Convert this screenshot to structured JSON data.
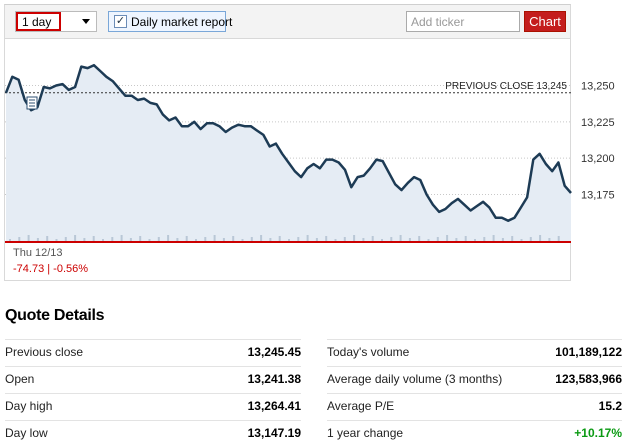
{
  "toolbar": {
    "range_value": "1 day",
    "report_label": "Daily market report",
    "report_checked": "✓",
    "ticker_placeholder": "Add ticker",
    "chart_button": "Chart"
  },
  "chart": {
    "previous_close_label": "PREVIOUS CLOSE 13,245",
    "y_ticks": [
      "13,250",
      "13,225",
      "13,200",
      "13,175"
    ],
    "date_label": "Thu 12/13",
    "change_label": "-74.73 | -0.56%",
    "colors": {
      "line": "#1d3b55",
      "fill": "#e5ecf4",
      "baseline": "#cc0000"
    }
  },
  "chart_data": {
    "type": "area",
    "title": "",
    "xlabel": "",
    "ylabel": "",
    "ylim": [
      13143,
      13282
    ],
    "y_ticks": [
      13250,
      13225,
      13200,
      13175
    ],
    "previous_close": 13245,
    "y": [
      13245,
      13256,
      13254,
      13240,
      13233,
      13235,
      13249,
      13248,
      13250,
      13251,
      13247,
      13249,
      13263,
      13262,
      13264,
      13260,
      13256,
      13253,
      13248,
      13243,
      13243,
      13240,
      13241,
      13238,
      13237,
      13230,
      13226,
      13228,
      13222,
      13222,
      13225,
      13220,
      13224,
      13224,
      13222,
      13218,
      13221,
      13223,
      13222,
      13222,
      13219,
      13216,
      13208,
      13210,
      13203,
      13197,
      13191,
      13187,
      13193,
      13196,
      13193,
      13199,
      13199,
      13197,
      13192,
      13180,
      13187,
      13188,
      13193,
      13199,
      13198,
      13190,
      13182,
      13178,
      13183,
      13187,
      13185,
      13175,
      13168,
      13163,
      13165,
      13169,
      13172,
      13168,
      13164,
      13167,
      13170,
      13166,
      13159,
      13159,
      13157,
      13159,
      13166,
      13173,
      13199,
      13203,
      13196,
      13191,
      13197,
      13181,
      13176
    ]
  },
  "quote": {
    "title": "Quote Details",
    "left": [
      {
        "label": "Previous close",
        "value": "13,245.45"
      },
      {
        "label": "Open",
        "value": "13,241.38"
      },
      {
        "label": "Day high",
        "value": "13,264.41"
      },
      {
        "label": "Day low",
        "value": "13,147.19"
      }
    ],
    "right": [
      {
        "label": "Today's volume",
        "value": "101,189,122"
      },
      {
        "label": "Average daily volume (3 months)",
        "value": "123,583,966"
      },
      {
        "label": "Average P/E",
        "value": "15.2"
      },
      {
        "label": "1 year change",
        "value": "+10.17%"
      }
    ]
  }
}
